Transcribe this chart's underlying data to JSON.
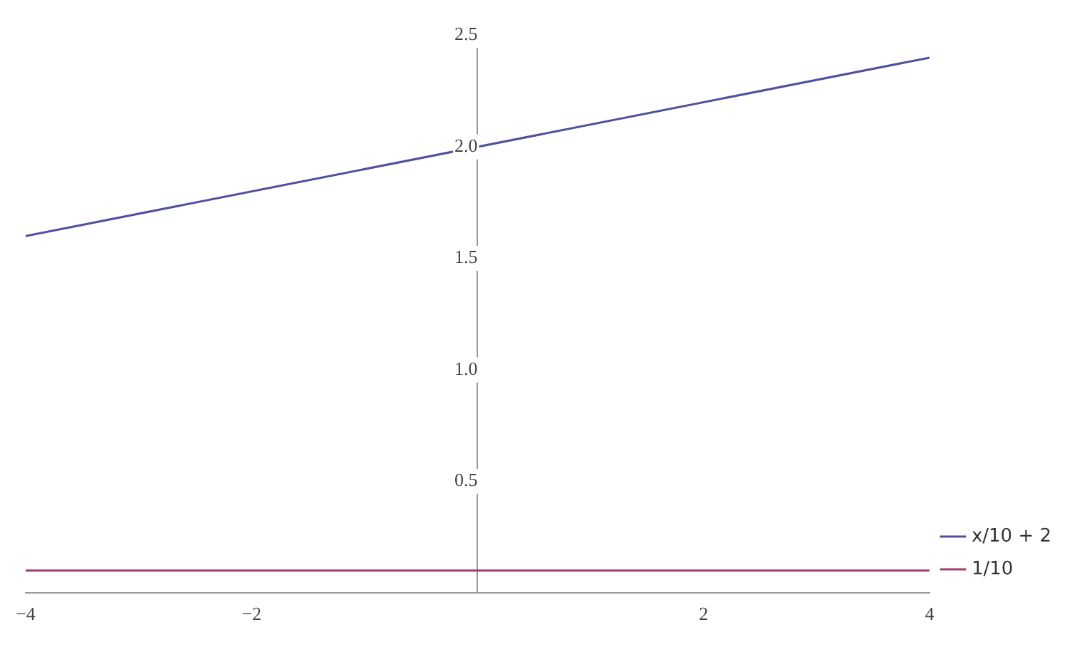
{
  "chart_data": {
    "type": "line",
    "x": [
      -4,
      4
    ],
    "series": [
      {
        "name": "x/10 + 2",
        "color": "#50509e",
        "values": [
          1.6,
          2.4
        ]
      },
      {
        "name": "1/10",
        "color": "#9e3d6e",
        "values": [
          0.1,
          0.1
        ]
      }
    ],
    "xlim": [
      -4,
      4
    ],
    "xticks": [
      -4,
      -2,
      2,
      4
    ],
    "ylim": [
      0,
      2.5
    ],
    "yticks": [
      0.5,
      {
        "value": 1,
        "label": "1.0"
      },
      1.5,
      {
        "value": 2,
        "label": "2.0"
      },
      2.5
    ],
    "grid": false,
    "legend": "bottom right",
    "marker": "none",
    "line_style": "solid"
  }
}
